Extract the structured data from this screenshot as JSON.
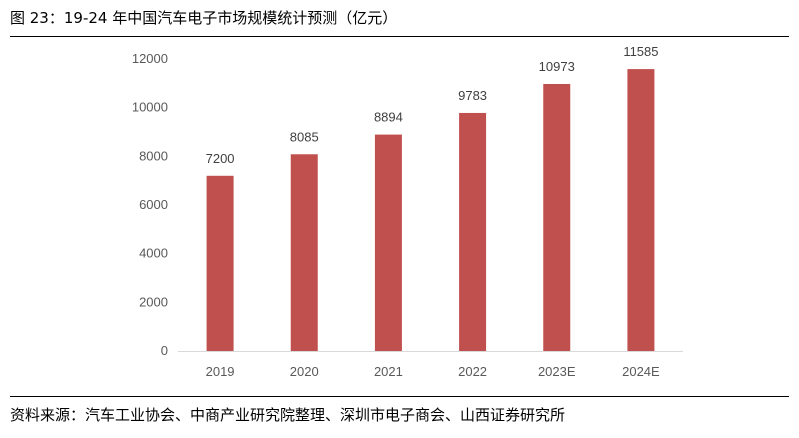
{
  "figure": {
    "title": "图 23：19-24 年中国汽车电子市场规模统计预测（亿元）",
    "source": "资料来源：汽车工业协会、中商产业研究院整理、深圳市电子商会、山西证券研究所"
  },
  "chart_data": {
    "type": "bar",
    "categories": [
      "2019",
      "2020",
      "2021",
      "2022",
      "2023E",
      "2024E"
    ],
    "values": [
      7200,
      8085,
      8894,
      9783,
      10973,
      11585
    ],
    "ylim": [
      0,
      12000
    ],
    "yticks": [
      0,
      2000,
      4000,
      6000,
      8000,
      10000,
      12000
    ],
    "bar_color": "#c0504d",
    "axis_color": "#d9d9d9",
    "grid": false,
    "legend": "none"
  }
}
